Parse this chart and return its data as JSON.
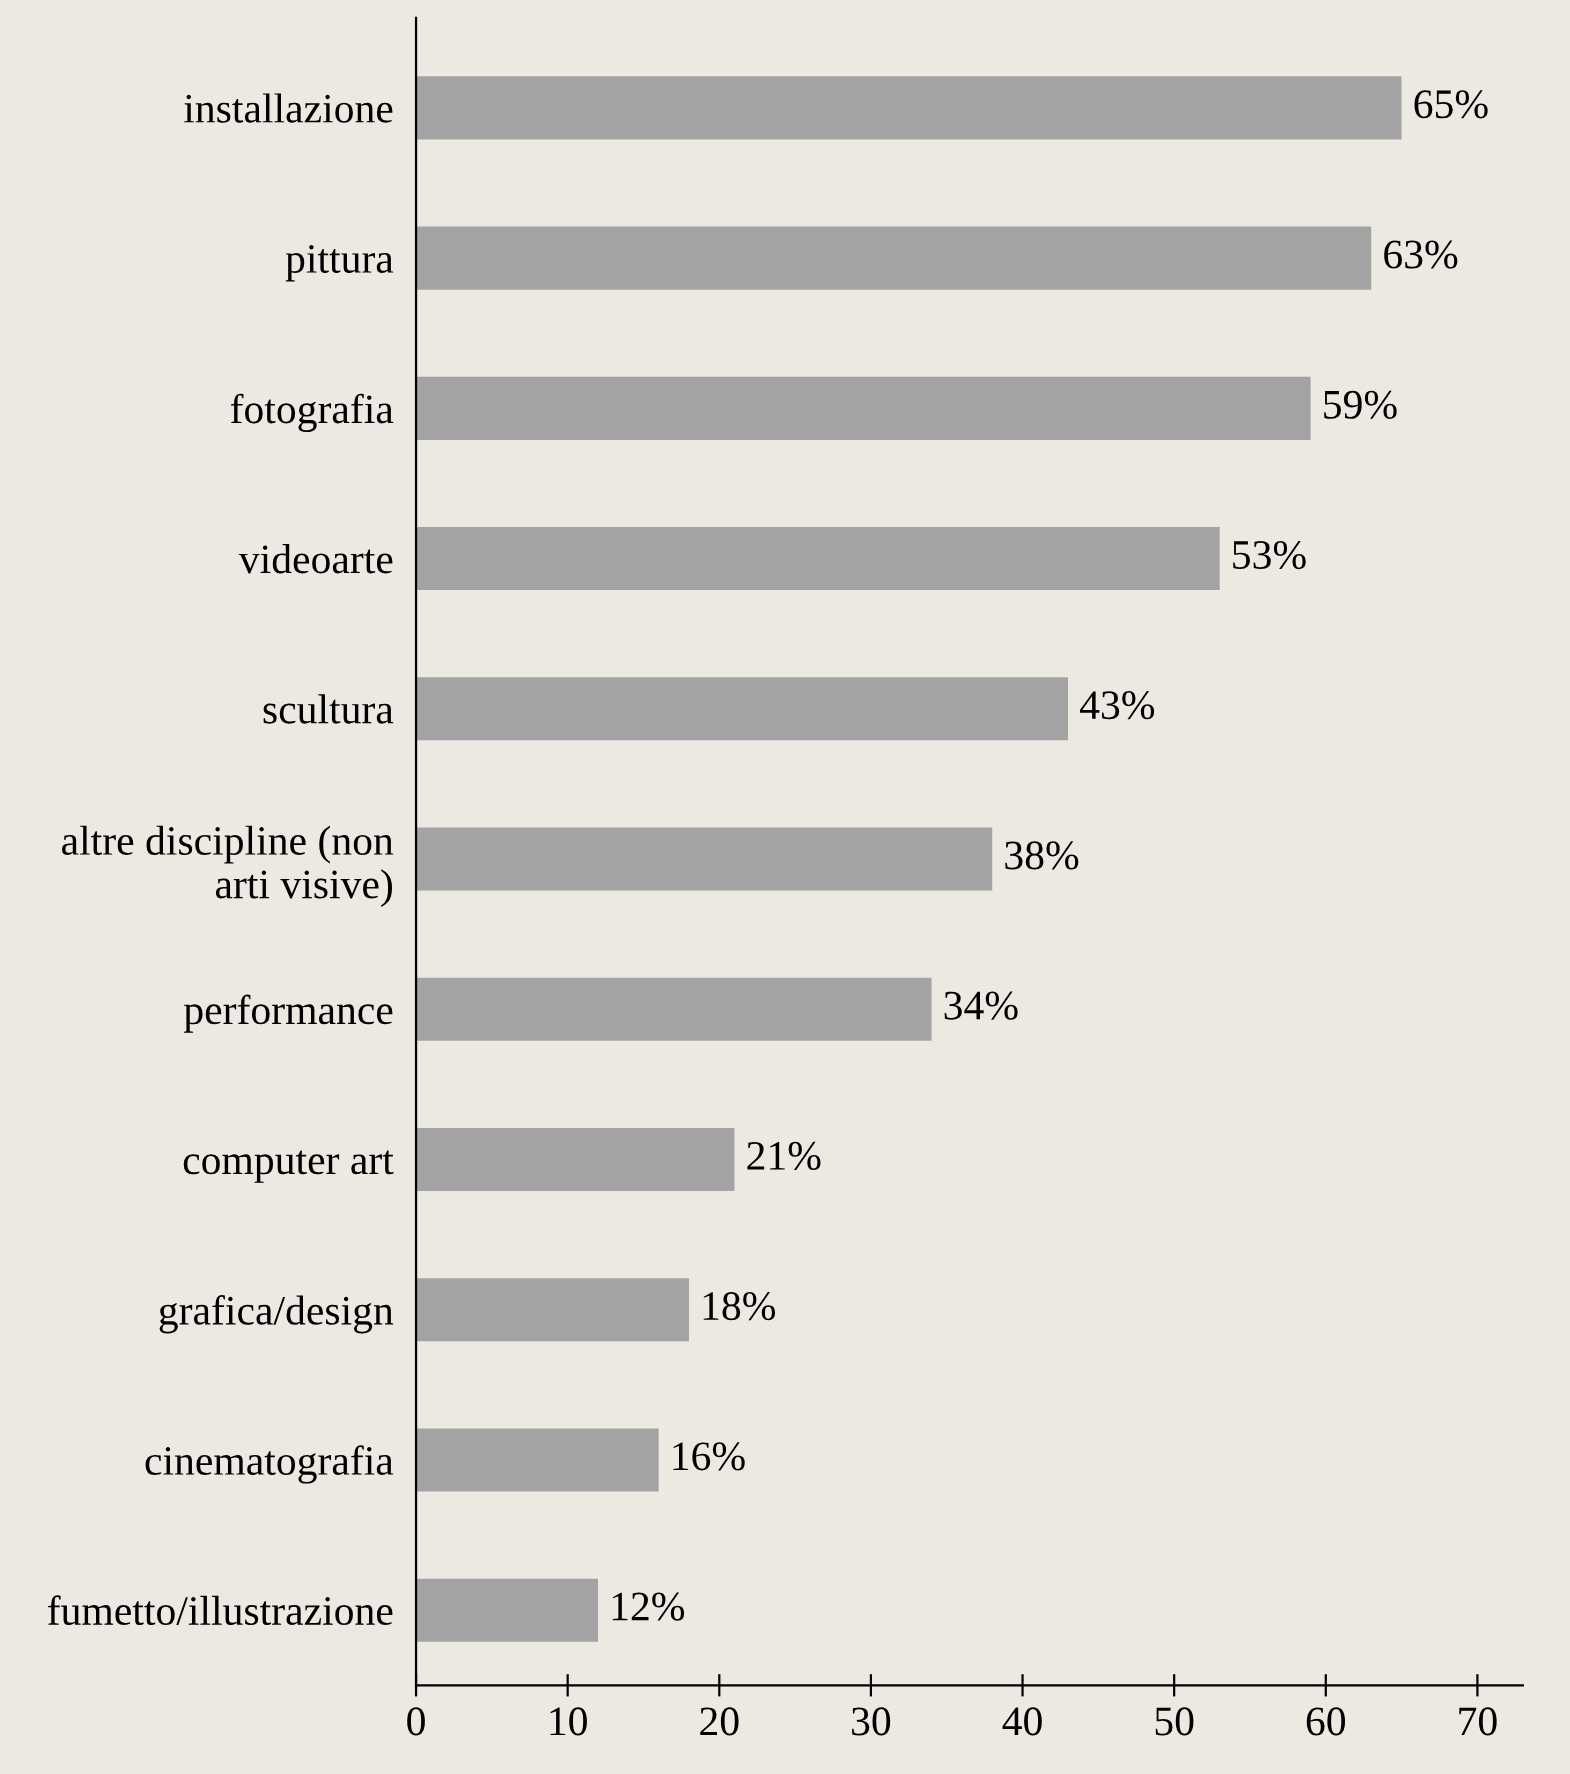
{
  "chart_data": {
    "type": "bar",
    "orientation": "horizontal",
    "categories": [
      "installazione",
      "pittura",
      "fotografia",
      "videoarte",
      "scultura",
      "altre discipline (non\narti visive)",
      "performance",
      "computer art",
      "grafica/design",
      "cinematografia",
      "fumetto/illustrazione"
    ],
    "values": [
      65,
      63,
      59,
      53,
      43,
      38,
      34,
      21,
      18,
      16,
      12
    ],
    "value_labels": [
      "65%",
      "63%",
      "59%",
      "53%",
      "43%",
      "38%",
      "34%",
      "21%",
      "18%",
      "16%",
      "12%"
    ],
    "color": "#a3a3a3",
    "xlim": [
      0,
      73
    ],
    "xticks": [
      0,
      10,
      20,
      30,
      40,
      50,
      60,
      70
    ],
    "grid": false,
    "legend": false
  }
}
